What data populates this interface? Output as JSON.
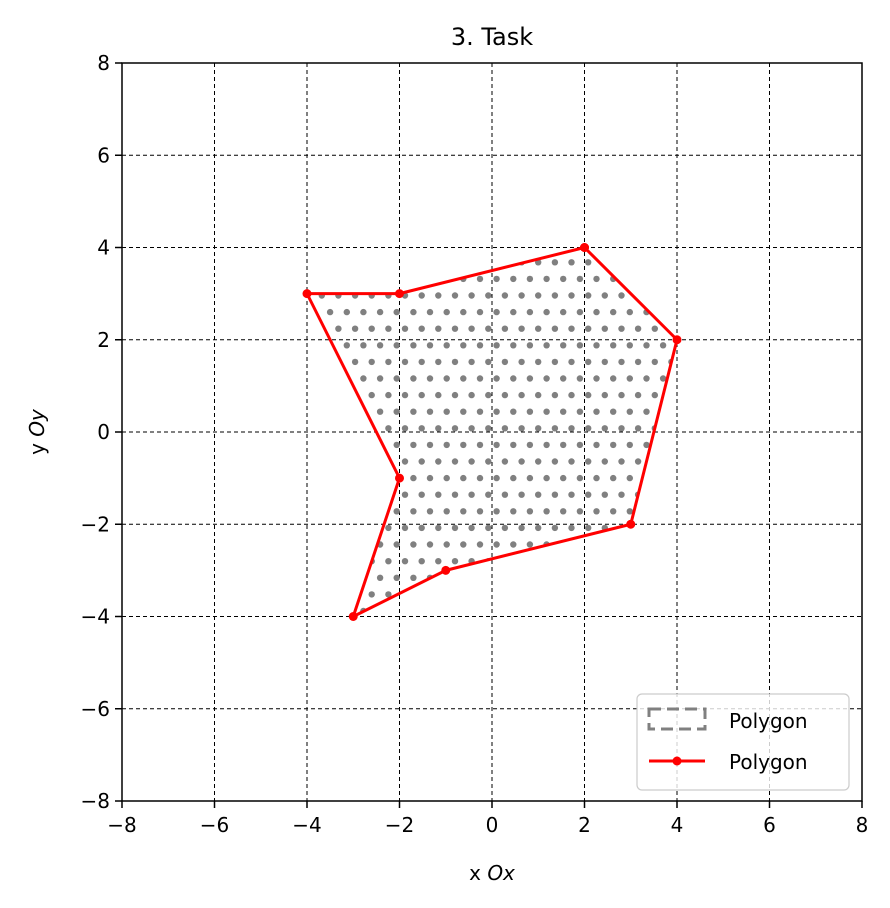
{
  "chart_data": {
    "type": "line",
    "title": "3. Task",
    "xlabel_prefix": "x ",
    "xlabel_var": "Ox",
    "ylabel_prefix": "y ",
    "ylabel_var": "Oy",
    "xlim": [
      -8,
      8
    ],
    "ylim": [
      -8,
      8
    ],
    "xticks": [
      -8,
      -6,
      -4,
      -2,
      0,
      2,
      4,
      6,
      8
    ],
    "yticks": [
      -8,
      -6,
      -4,
      -2,
      0,
      2,
      4,
      6,
      8
    ],
    "xtick_labels": [
      "−8",
      "−6",
      "−4",
      "−2",
      "0",
      "2",
      "4",
      "6",
      "8"
    ],
    "ytick_labels": [
      "−8",
      "−6",
      "−4",
      "−2",
      "0",
      "2",
      "4",
      "6",
      "8"
    ],
    "grid": true,
    "legend_position": "bottom-right",
    "series": [
      {
        "name": "Polygon",
        "kind": "hatch-fill",
        "color": "#808080"
      },
      {
        "name": "Polygon",
        "kind": "line-with-markers",
        "color": "#ff0000",
        "points": [
          [
            2,
            4
          ],
          [
            4,
            2
          ],
          [
            3,
            -2
          ],
          [
            -1,
            -3
          ],
          [
            -3,
            -4
          ],
          [
            -2,
            -1
          ],
          [
            -4,
            3
          ],
          [
            -2,
            3
          ],
          [
            2,
            4
          ]
        ]
      }
    ]
  }
}
